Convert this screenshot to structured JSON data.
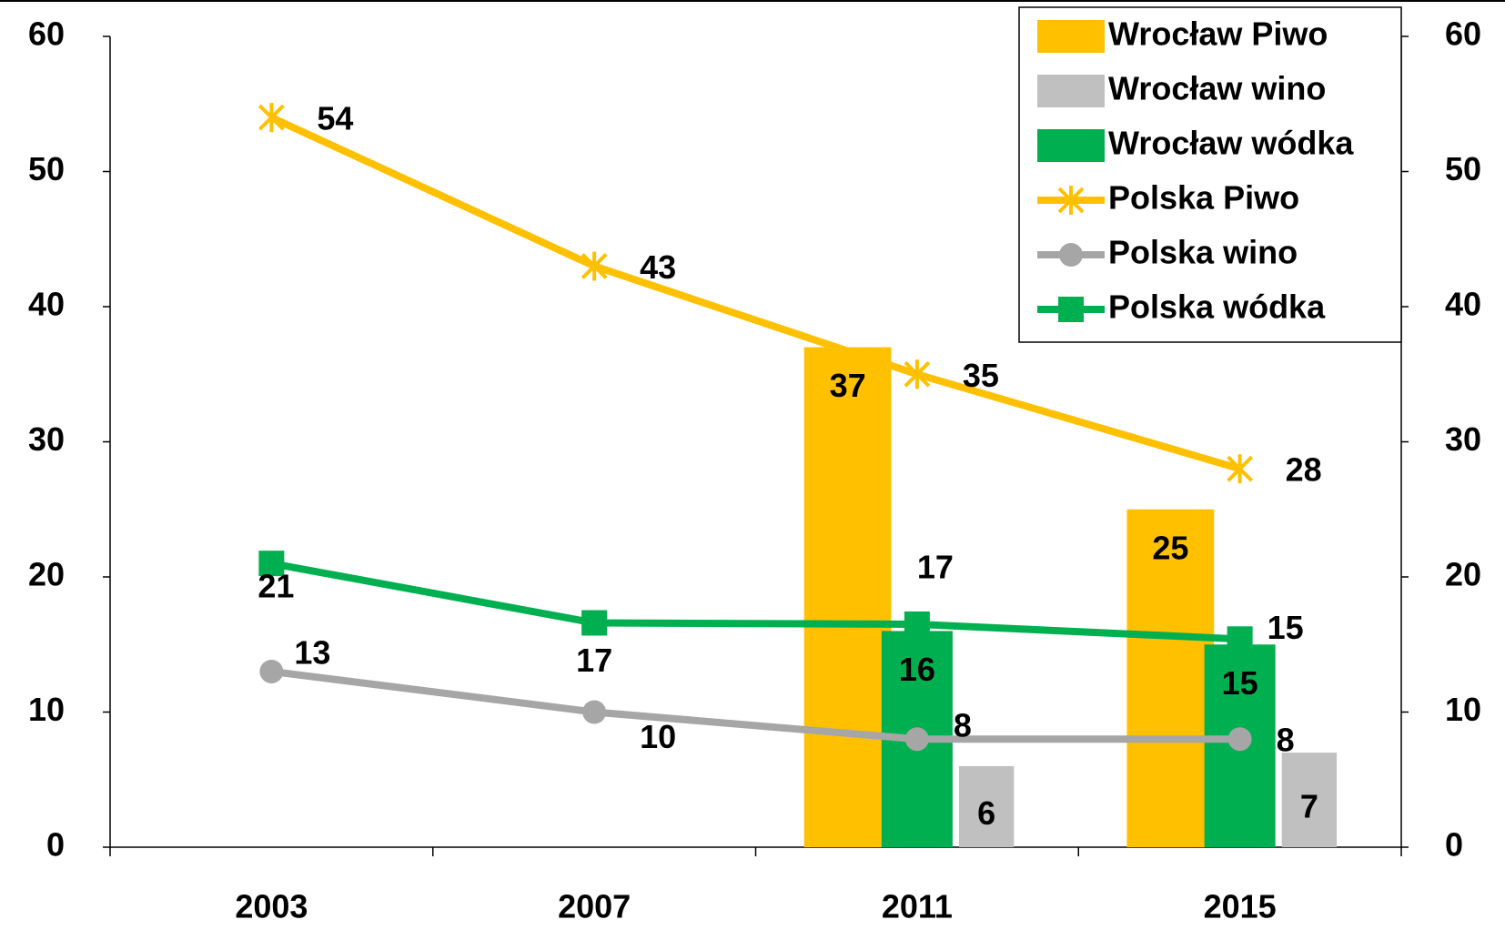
{
  "chart_data": {
    "type": "bar-line",
    "categories": [
      "2003",
      "2007",
      "2011",
      "2015"
    ],
    "series": [
      {
        "name": "Wrocław Piwo",
        "kind": "bar",
        "color": "#ffc000",
        "values": [
          null,
          null,
          37,
          25
        ]
      },
      {
        "name": "Wrocław wino",
        "kind": "bar",
        "color": "#c0c0c0",
        "values": [
          null,
          null,
          6,
          7
        ]
      },
      {
        "name": "Wrocław wódka",
        "kind": "bar",
        "color": "#00b050",
        "values": [
          null,
          null,
          16,
          15
        ]
      },
      {
        "name": "Polska Piwo",
        "kind": "line",
        "marker": "star",
        "color": "#ffc000",
        "values": [
          54,
          43,
          35,
          28
        ]
      },
      {
        "name": "Polska wino",
        "kind": "line",
        "marker": "circle",
        "color": "#a6a6a6",
        "values": [
          13,
          10,
          8,
          8
        ]
      },
      {
        "name": "Polska wódka",
        "kind": "line",
        "marker": "square",
        "color": "#00b050",
        "values": [
          21,
          16.6,
          16.5,
          15.4
        ],
        "value_labels": [
          "21",
          "17",
          "17",
          "15"
        ]
      }
    ],
    "ylim": [
      0,
      60
    ],
    "yticks": [
      0,
      10,
      20,
      30,
      40,
      50,
      60
    ],
    "y2lim": [
      0,
      60
    ],
    "y2ticks": [
      0,
      10,
      20,
      30,
      40,
      50,
      60
    ],
    "legend": "top-right"
  }
}
